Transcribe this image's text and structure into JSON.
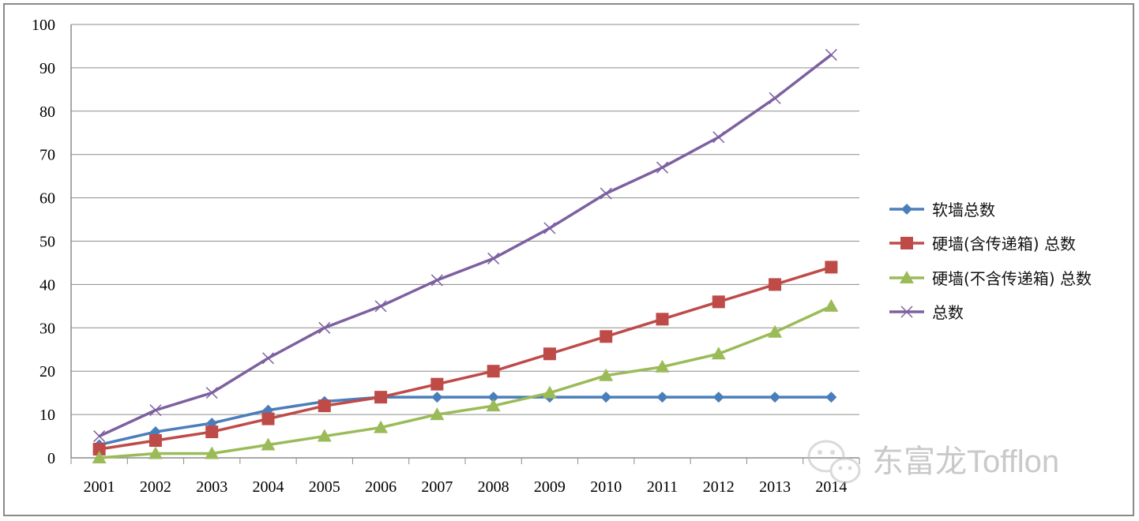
{
  "chart_data": {
    "type": "line",
    "categories": [
      "2001",
      "2002",
      "2003",
      "2004",
      "2005",
      "2006",
      "2007",
      "2008",
      "2009",
      "2010",
      "2011",
      "2012",
      "2013",
      "2014"
    ],
    "ylim": [
      0,
      100
    ],
    "yticks": [
      "0",
      "10",
      "20",
      "30",
      "40",
      "50",
      "60",
      "70",
      "80",
      "90",
      "100"
    ],
    "grid": true,
    "legend_position": "right",
    "series": [
      {
        "name": "软墙总数",
        "color": "#4a7ebb",
        "marker": "diamond",
        "values": [
          3,
          6,
          8,
          11,
          13,
          14,
          14,
          14,
          14,
          14,
          14,
          14,
          14,
          14
        ]
      },
      {
        "name": "硬墙(含传递箱) 总数",
        "color": "#be4b48",
        "marker": "square",
        "values": [
          2,
          4,
          6,
          9,
          12,
          14,
          17,
          20,
          24,
          28,
          32,
          36,
          40,
          44
        ]
      },
      {
        "name": "硬墙(不含传递箱) 总数",
        "color": "#9bbb59",
        "marker": "triangle",
        "values": [
          0,
          1,
          1,
          3,
          5,
          7,
          10,
          12,
          15,
          19,
          21,
          24,
          29,
          35
        ]
      },
      {
        "name": "总数",
        "color": "#7d60a0",
        "marker": "x",
        "values": [
          5,
          11,
          15,
          23,
          30,
          35,
          41,
          46,
          53,
          61,
          67,
          74,
          83,
          93
        ]
      }
    ]
  },
  "watermark": {
    "text": "东富龙Tofflon",
    "icon": "wechat-icon"
  }
}
